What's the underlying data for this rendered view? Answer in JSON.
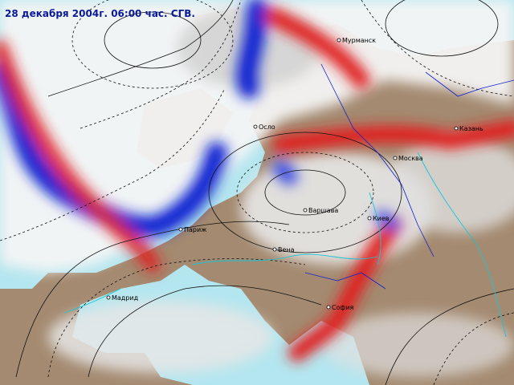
{
  "header": {
    "title": "28 декабря 2004г. 06:00 час. СГВ."
  },
  "cities": [
    {
      "label": "Мурманск"
    },
    {
      "label": "Осло"
    },
    {
      "label": "Казань"
    },
    {
      "label": "Москва"
    },
    {
      "label": "Варшава"
    },
    {
      "label": "Киев"
    },
    {
      "label": "Париж"
    },
    {
      "label": "Вена"
    },
    {
      "label": "Мадрид"
    },
    {
      "label": "София"
    }
  ]
}
